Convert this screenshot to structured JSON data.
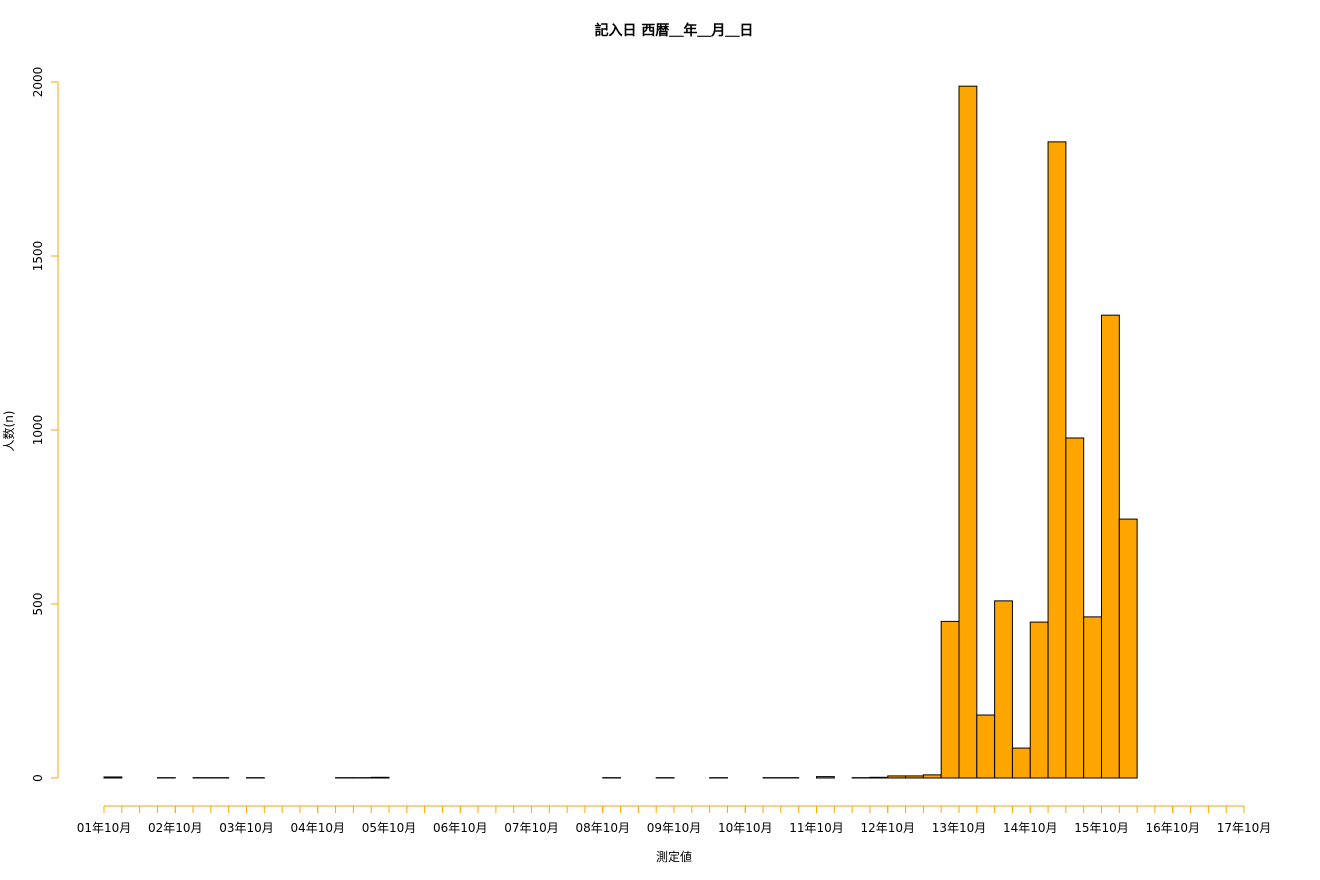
{
  "chart_data": {
    "type": "histogram",
    "title": "記入日 西暦＿年＿月＿日",
    "x_label": "測定値",
    "y_label": "人数(n)",
    "color": "#ffa500",
    "axis_color": "#ffa500",
    "bins": [
      0,
      0.25,
      0.5,
      0.75,
      1,
      1.25,
      1.5,
      1.75,
      2,
      2.25,
      2.5,
      2.75,
      3,
      3.25,
      3.5,
      3.75,
      4,
      4.25,
      4.5,
      4.75,
      5,
      5.25,
      5.5,
      5.75,
      6,
      6.25,
      6.5,
      6.75,
      7,
      7.25,
      7.5,
      7.75,
      8,
      8.25,
      8.5,
      8.75,
      9,
      9.25,
      9.5,
      9.75,
      10,
      10.25,
      10.5,
      10.75,
      11,
      11.25,
      11.5,
      11.75,
      12,
      12.25,
      12.5,
      12.75,
      13,
      13.25,
      13.5,
      13.75,
      14,
      14.25,
      14.5,
      14.75,
      15,
      15.25,
      15.5,
      15.75,
      16
    ],
    "values": [
      3,
      0,
      0,
      1,
      0,
      1,
      1,
      0,
      1,
      0,
      0,
      0,
      0,
      1,
      1,
      2,
      0,
      0,
      0,
      0,
      0,
      0,
      0,
      0,
      0,
      0,
      0,
      0,
      1,
      0,
      0,
      1,
      0,
      0,
      1,
      0,
      0,
      1,
      1,
      0,
      4,
      0,
      1,
      2,
      6,
      6,
      9,
      450,
      1988,
      181,
      509,
      86,
      448,
      1828,
      977,
      463,
      1330,
      744,
      0,
      0,
      0,
      0,
      0,
      0
    ],
    "xlim": [
      0,
      16
    ],
    "xticks": [
      {
        "value": 0,
        "label": "01年10月"
      },
      {
        "value": 1,
        "label": "02年10月"
      },
      {
        "value": 2,
        "label": "03年10月"
      },
      {
        "value": 3,
        "label": "04年10月"
      },
      {
        "value": 4,
        "label": "05年10月"
      },
      {
        "value": 5,
        "label": "06年10月"
      },
      {
        "value": 6,
        "label": "07年10月"
      },
      {
        "value": 7,
        "label": "08年10月"
      },
      {
        "value": 8,
        "label": "09年10月"
      },
      {
        "value": 9,
        "label": "10年10月"
      },
      {
        "value": 10,
        "label": "11年10月"
      },
      {
        "value": 11,
        "label": "12年10月"
      },
      {
        "value": 12,
        "label": "13年10月"
      },
      {
        "value": 13,
        "label": "14年10月"
      },
      {
        "value": 14,
        "label": "15年10月"
      },
      {
        "value": 15,
        "label": "16年10月"
      },
      {
        "value": 16,
        "label": "17年10月"
      }
    ],
    "ylim": [
      0,
      2000
    ],
    "yticks": [
      0,
      500,
      1000,
      1500,
      2000
    ]
  }
}
